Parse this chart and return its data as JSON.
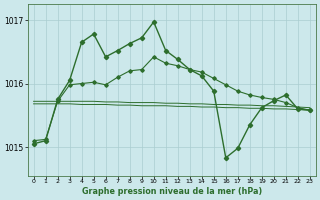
{
  "background_color": "#cce8eb",
  "plot_bg_color": "#cce8eb",
  "grid_color": "#aacdd0",
  "line_color": "#2d6e2d",
  "marker_color": "#2d6e2d",
  "xlabel": "Graphe pression niveau de la mer (hPa)",
  "ylim": [
    1014.55,
    1017.25
  ],
  "yticks": [
    1015,
    1016,
    1017
  ],
  "xlim": [
    -0.5,
    23.5
  ],
  "xticks": [
    0,
    1,
    2,
    3,
    4,
    5,
    6,
    7,
    8,
    9,
    10,
    11,
    12,
    13,
    14,
    15,
    16,
    17,
    18,
    19,
    20,
    21,
    22,
    23
  ],
  "line_spiky": {
    "x": [
      0,
      1,
      2,
      3,
      4,
      5,
      6,
      7,
      8,
      9,
      10,
      11,
      12,
      13,
      14,
      15,
      16,
      17,
      18,
      19,
      20,
      21,
      22,
      23
    ],
    "y": [
      1015.05,
      1015.1,
      1015.75,
      1016.05,
      1016.65,
      1016.78,
      1016.42,
      1016.52,
      1016.63,
      1016.72,
      1016.97,
      1016.52,
      1016.38,
      1016.22,
      1016.12,
      1015.88,
      1014.83,
      1014.98,
      1015.35,
      1015.62,
      1015.73,
      1015.82,
      1015.6,
      1015.58
    ]
  },
  "line_medium": {
    "x": [
      0,
      1,
      2,
      3,
      4,
      5,
      6,
      7,
      8,
      9,
      10,
      11,
      12,
      13,
      14,
      15,
      16,
      17,
      18,
      19,
      20,
      21,
      22,
      23
    ],
    "y": [
      1015.1,
      1015.12,
      1015.72,
      1015.98,
      1016.0,
      1016.02,
      1015.98,
      1016.1,
      1016.2,
      1016.22,
      1016.42,
      1016.32,
      1016.28,
      1016.22,
      1016.18,
      1016.08,
      1015.98,
      1015.88,
      1015.82,
      1015.78,
      1015.75,
      1015.7,
      1015.62,
      1015.58
    ]
  },
  "line_flat1": {
    "x": [
      0,
      1,
      2,
      3,
      4,
      5,
      6,
      7,
      8,
      9,
      10,
      11,
      12,
      13,
      14,
      15,
      16,
      17,
      18,
      19,
      20,
      21,
      22,
      23
    ],
    "y": [
      1015.72,
      1015.72,
      1015.72,
      1015.72,
      1015.72,
      1015.72,
      1015.71,
      1015.71,
      1015.7,
      1015.7,
      1015.7,
      1015.69,
      1015.69,
      1015.68,
      1015.68,
      1015.67,
      1015.67,
      1015.66,
      1015.66,
      1015.65,
      1015.65,
      1015.64,
      1015.63,
      1015.62
    ]
  },
  "line_flat2": {
    "x": [
      0,
      1,
      2,
      3,
      4,
      5,
      6,
      7,
      8,
      9,
      10,
      11,
      12,
      13,
      14,
      15,
      16,
      17,
      18,
      19,
      20,
      21,
      22,
      23
    ],
    "y": [
      1015.68,
      1015.68,
      1015.68,
      1015.68,
      1015.67,
      1015.67,
      1015.67,
      1015.66,
      1015.66,
      1015.65,
      1015.65,
      1015.65,
      1015.64,
      1015.64,
      1015.63,
      1015.63,
      1015.62,
      1015.62,
      1015.61,
      1015.61,
      1015.6,
      1015.6,
      1015.59,
      1015.58
    ]
  }
}
